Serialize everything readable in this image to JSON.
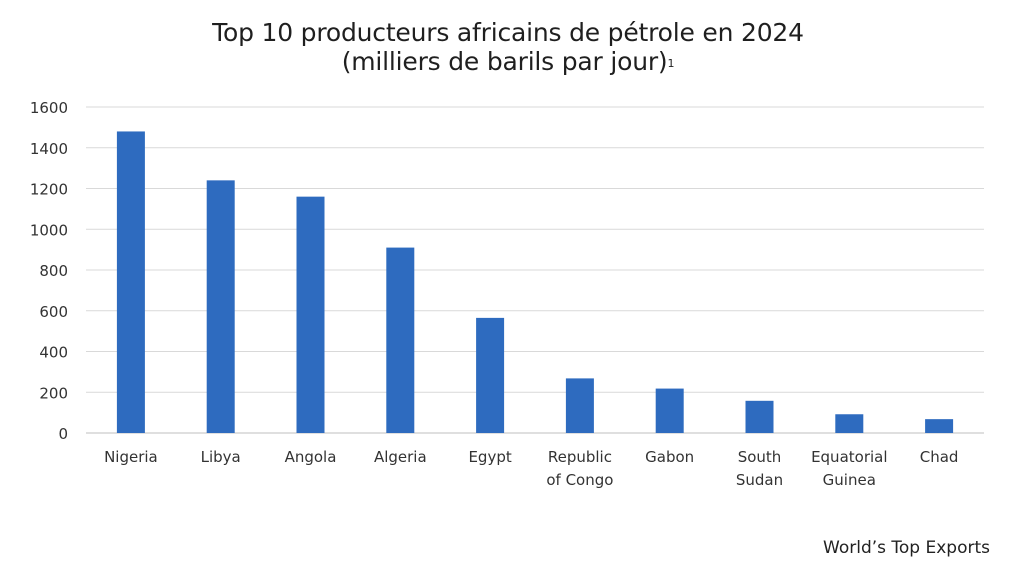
{
  "chart_data": {
    "type": "bar",
    "title": "Top 10 producteurs africains de pétrole en 2024",
    "subtitle": "(milliers de barils par jour)",
    "subtitle_footnote": "1",
    "categories": [
      [
        "Nigeria"
      ],
      [
        "Libya"
      ],
      [
        "Angola"
      ],
      [
        "Algeria"
      ],
      [
        "Egypt"
      ],
      [
        "Republic",
        "of Congo"
      ],
      [
        "Gabon"
      ],
      [
        "South",
        "Sudan"
      ],
      [
        "Equatorial",
        "Guinea"
      ],
      [
        "Chad"
      ]
    ],
    "values": [
      1480,
      1240,
      1160,
      910,
      565,
      268,
      218,
      158,
      92,
      68
    ],
    "ylim": [
      0,
      1600
    ],
    "yticks": [
      0,
      200,
      400,
      600,
      800,
      1000,
      1200,
      1400,
      1600
    ],
    "grid": true,
    "legend": "none",
    "bar_color": "#2e6bbf",
    "grid_color": "#d9d9d9"
  },
  "source": "World’s Top Exports"
}
